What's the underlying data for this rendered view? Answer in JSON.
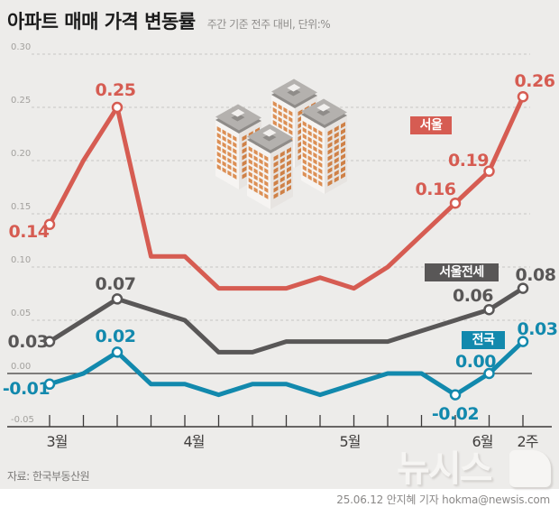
{
  "header": {
    "title": "아파트 매매 가격 변동률",
    "subtitle": "주간 기준 전주 대비, 단위:%"
  },
  "chart_data": {
    "type": "line",
    "title": "아파트 매매 가격 변동률",
    "subtitle": "주간 기준 전주 대비, 단위:%",
    "unit": "%",
    "grid": "dashed-horizontal",
    "ylim": [
      -0.05,
      0.3
    ],
    "y_ticks": [
      {
        "label": "0.30",
        "v": 0.3
      },
      {
        "label": "0.25",
        "v": 0.25
      },
      {
        "label": "0.20",
        "v": 0.2
      },
      {
        "label": "0.15",
        "v": 0.15
      },
      {
        "label": "0.10",
        "v": 0.1
      },
      {
        "label": "0.05",
        "v": 0.05
      },
      {
        "label": "0.00",
        "v": 0.0
      },
      {
        "label": "-0.05",
        "v": -0.05
      }
    ],
    "x_axis": {
      "n_points": 15,
      "tick_labels": [
        {
          "label": "3월",
          "i": 0
        },
        {
          "label": "4월",
          "i": 4
        },
        {
          "label": "5월",
          "i": 9
        },
        {
          "label": "6월",
          "i": 13
        },
        {
          "label": "2주",
          "i": 14
        }
      ]
    },
    "series": [
      {
        "name": "서울",
        "color": "#d65c52",
        "values": [
          0.14,
          0.2,
          0.25,
          0.11,
          0.11,
          0.08,
          0.08,
          0.08,
          0.09,
          0.08,
          0.1,
          0.13,
          0.16,
          0.19,
          0.26
        ],
        "point_labels": [
          {
            "i": 0,
            "text": "0.14"
          },
          {
            "i": 2,
            "text": "0.25"
          },
          {
            "i": 12,
            "text": "0.16"
          },
          {
            "i": 13,
            "text": "0.19"
          },
          {
            "i": 14,
            "text": "0.26"
          }
        ]
      },
      {
        "name": "서울전세",
        "color": "#595757",
        "values": [
          0.03,
          0.05,
          0.07,
          0.06,
          0.05,
          0.02,
          0.02,
          0.03,
          0.03,
          0.03,
          0.03,
          0.04,
          0.05,
          0.06,
          0.08
        ],
        "point_labels": [
          {
            "i": 0,
            "text": "0.03"
          },
          {
            "i": 2,
            "text": "0.07"
          },
          {
            "i": 13,
            "text": "0.06"
          },
          {
            "i": 14,
            "text": "0.08"
          }
        ]
      },
      {
        "name": "전국",
        "color": "#1289ad",
        "values": [
          -0.01,
          0.0,
          0.02,
          -0.01,
          -0.01,
          -0.02,
          -0.01,
          -0.01,
          -0.02,
          -0.01,
          0.0,
          0.0,
          -0.02,
          0.0,
          0.03
        ],
        "point_labels": [
          {
            "i": 0,
            "text": "-0.01"
          },
          {
            "i": 2,
            "text": "0.02"
          },
          {
            "i": 12,
            "text": "-0.02"
          },
          {
            "i": 13,
            "text": "0.00"
          },
          {
            "i": 14,
            "text": "0.03"
          }
        ]
      }
    ],
    "legend": {
      "position": "inline-badges",
      "entries": [
        "서울",
        "서울전세",
        "전국"
      ]
    }
  },
  "footer": {
    "source": "자료: 한국부동산원",
    "credit": "25.06.12 안지혜 기자 hokma@newsis.com",
    "logo": "뉴시스"
  },
  "colors": {
    "background": "#edecea",
    "seoul": "#d65c52",
    "jeonse": "#595757",
    "nation": "#1289ad",
    "grid": "#c8c6c4",
    "axis": "#3c3a39",
    "building_window": "#dc8f54"
  }
}
